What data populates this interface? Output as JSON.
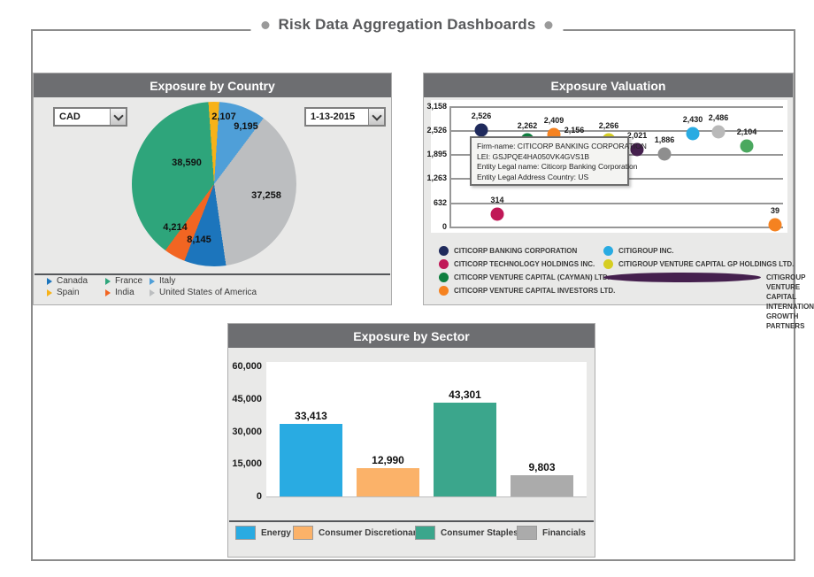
{
  "page": {
    "title": "Risk Data Aggregation Dashboards"
  },
  "country_panel": {
    "title": "Exposure by Country",
    "currency_dropdown": "CAD",
    "date_dropdown": "1-13-2015"
  },
  "valuation_panel": {
    "title": "Exposure Valuation",
    "tooltip_lines": [
      "Firm-name: CITICORP BANKING CORPORATION",
      "LEI: GSJPQE4HA050VK4GVS1B",
      "Entity Legal name: Citicorp Banking Corporation",
      "Entity Legal Address Country: US"
    ],
    "legend_col1": [
      {
        "label": "CITICORP BANKING CORPORATION",
        "color": "#1F2A5C"
      },
      {
        "label": "CITICORP TECHNOLOGY HOLDINGS INC.",
        "color": "#C01857"
      },
      {
        "label": "CITICORP VENTURE CAPITAL (CAYMAN) LTD.",
        "color": "#0E7E3E"
      },
      {
        "label": "CITICORP VENTURE CAPITAL INVESTORS LTD.",
        "color": "#F58220"
      }
    ],
    "legend_col2": [
      {
        "label": "CITIGROUP INC.",
        "color": "#29ABE2"
      },
      {
        "label": "CITIGROUP VENTURE CAPITAL GP HOLDINGS LTD.",
        "color": "#D6CE23"
      },
      {
        "label": "CITIGROUP VENTURE CAPITAL INTERNATIONAL GROWTH PARTNERS",
        "color": "#45204E",
        "wrap": true
      }
    ]
  },
  "sector_panel": {
    "title": "Exposure by Sector"
  },
  "chart_data": [
    {
      "type": "pie",
      "title": "Exposure by Country",
      "slices": [
        {
          "label": "Spain",
          "value": 2107,
          "color": "#F7B218"
        },
        {
          "label": "Italy",
          "value": 9195,
          "color": "#4F9FD8"
        },
        {
          "label": "United States of America",
          "value": 37258,
          "color": "#BCBEC0"
        },
        {
          "label": "Canada",
          "value": 8145,
          "color": "#1C75BC"
        },
        {
          "label": "India",
          "value": 4214,
          "color": "#F26522"
        },
        {
          "label": "France",
          "value": 38590,
          "color": "#2EA57B"
        }
      ],
      "legend_order": [
        "Canada",
        "France",
        "Italy",
        "Spain",
        "India",
        "United States of America"
      ]
    },
    {
      "type": "scatter",
      "title": "Exposure Valuation",
      "ylim": [
        0,
        3158
      ],
      "yticks": [
        3158,
        2526,
        1895,
        1263,
        632,
        0
      ],
      "points": [
        {
          "value": 2526,
          "color": "#1F2A5C"
        },
        {
          "value": 314,
          "color": "#C01857"
        },
        {
          "value": 2262,
          "color": "#0E7E3E"
        },
        {
          "value": 2409,
          "color": "#F58220"
        },
        {
          "value": 2156,
          "color": "#8E8E8E",
          "hidden_dot": true
        },
        {
          "value": 2266,
          "color": "#D6CE23"
        },
        {
          "value": 2021,
          "color": "#45204E"
        },
        {
          "value": 1886,
          "color": "#8E8E8E"
        },
        {
          "value": 2430,
          "color": "#29ABE2"
        },
        {
          "value": 2486,
          "color": "#B9B9B9"
        },
        {
          "value": 2104,
          "color": "#4BA85F"
        },
        {
          "value": 39,
          "color": "#F58220"
        }
      ]
    },
    {
      "type": "bar",
      "title": "Exposure by Sector",
      "ylim": [
        0,
        60000
      ],
      "yticks": [
        60000,
        45000,
        30000,
        15000,
        0
      ],
      "categories": [
        "Energy",
        "Consumer Discretionary",
        "Consumer Staples",
        "Financials"
      ],
      "values": [
        33413,
        12990,
        43301,
        9803
      ],
      "colors": [
        "#29ABE2",
        "#FBB269",
        "#3BA68C",
        "#ABABAB"
      ]
    }
  ]
}
